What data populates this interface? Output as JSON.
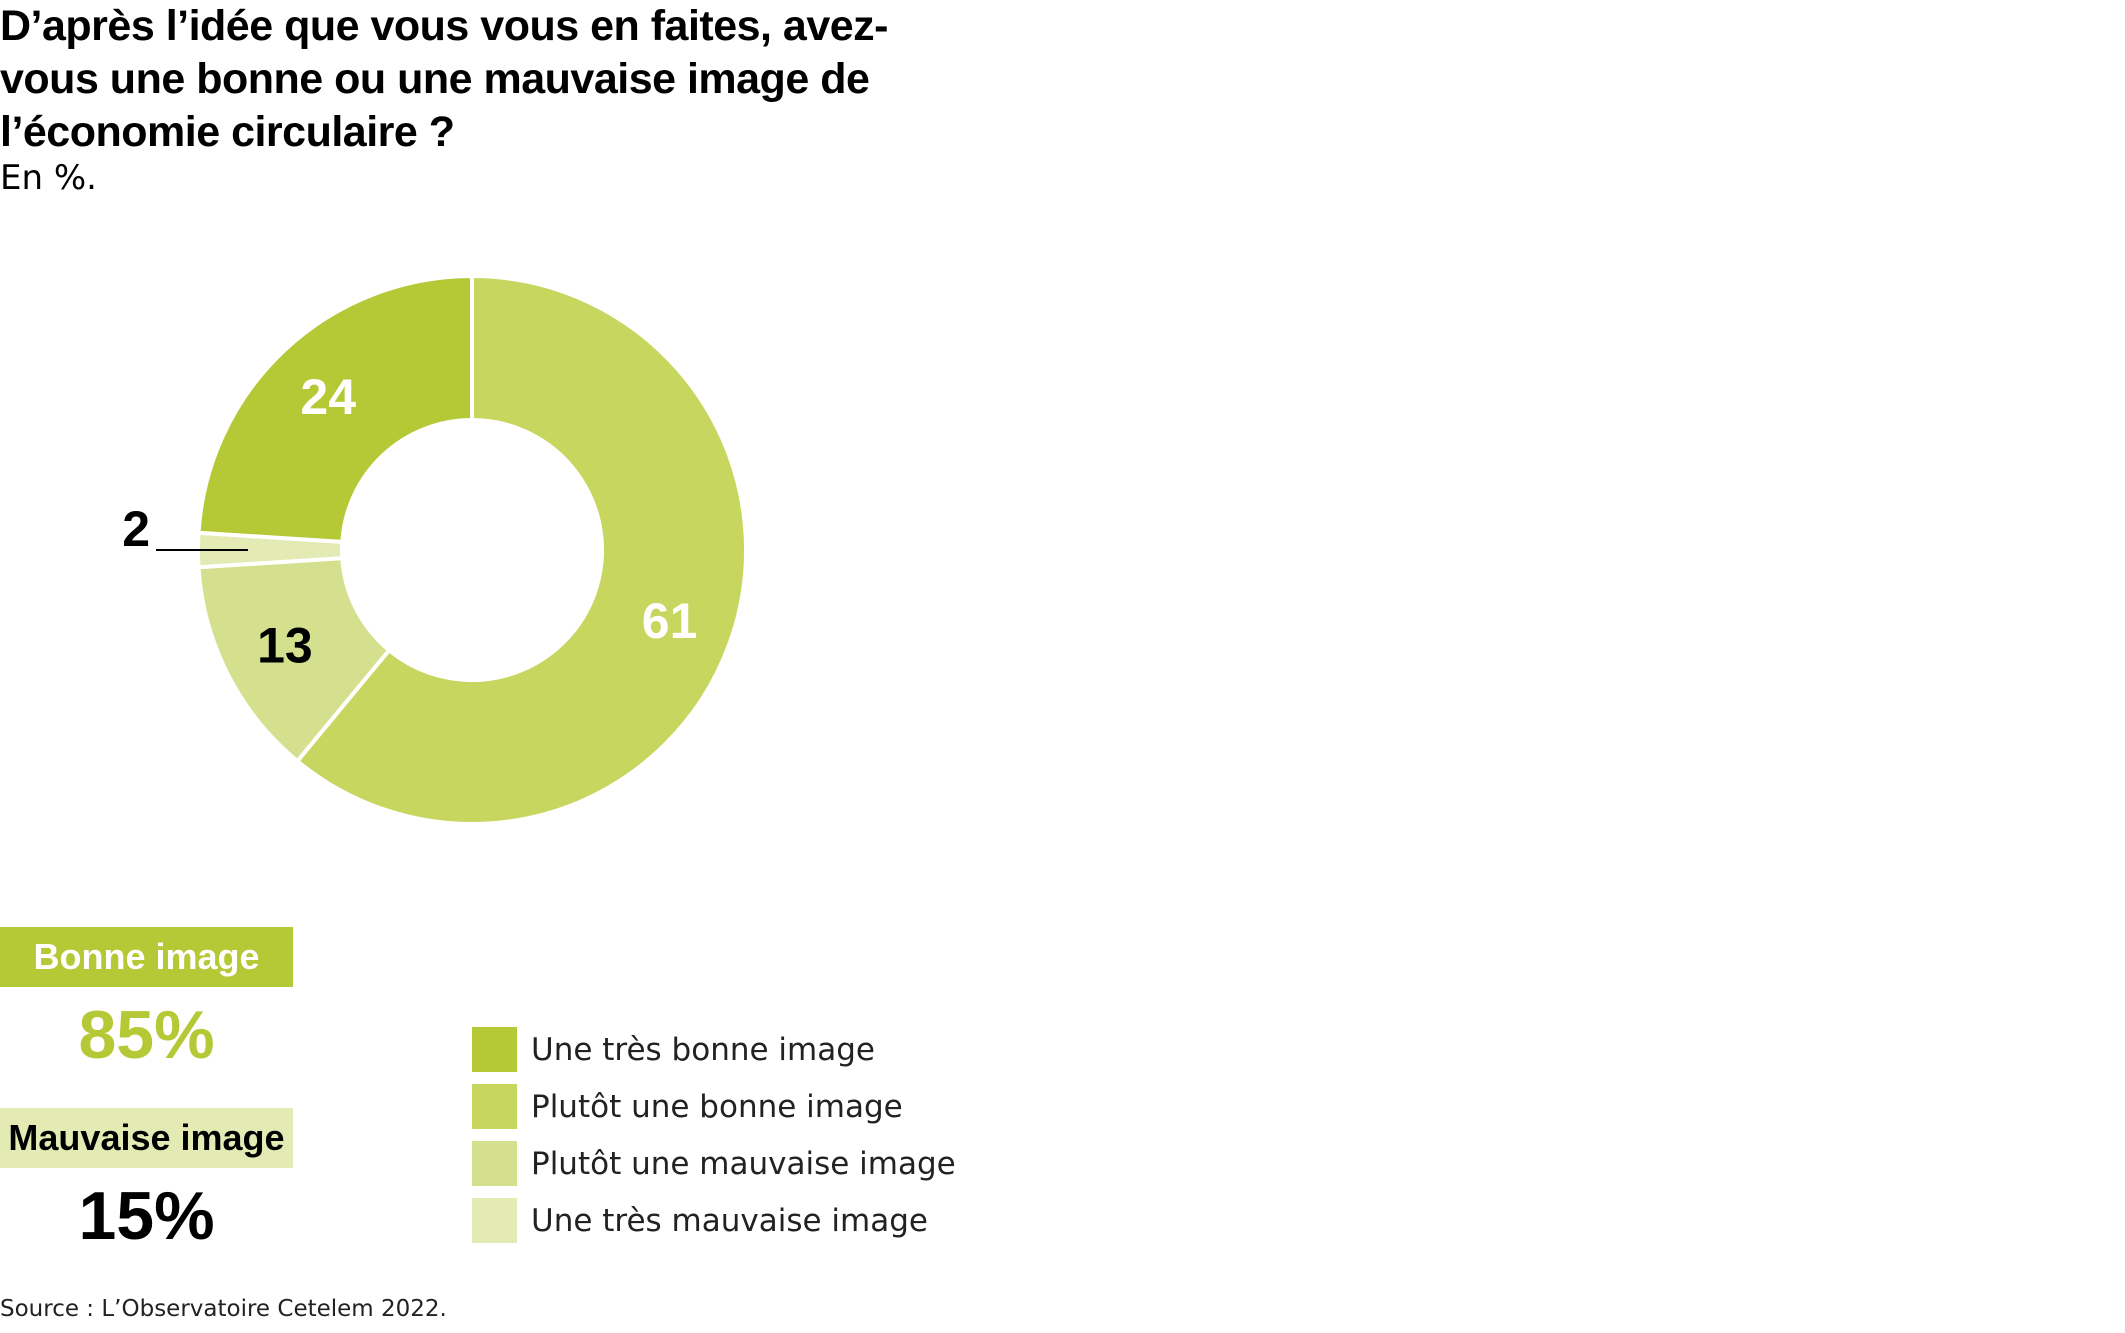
{
  "title": "D’après l’idée que vous vous en faites, avez-vous une bonne ou une mauvaise image de l’économie circulaire ?",
  "subtitle": "En %.",
  "source": "Source : L’Observatoire Cetelem 2022.",
  "summary": {
    "good": {
      "label": "Bonne image",
      "value": "85%",
      "box_color": "#b4c935",
      "value_color": "#b4c935"
    },
    "bad": {
      "label": "Mauvaise image",
      "value": "15%",
      "box_color": "#e3eab4",
      "value_color": "#000000"
    }
  },
  "chart_data": {
    "type": "pie",
    "title": "D’après l’idée que vous vous en faites, avez-vous une bonne ou une mauvaise image de l’économie circulaire ?",
    "unit": "%",
    "donut": true,
    "start": "top",
    "direction": "clockwise",
    "legend_position": "bottom",
    "slices": [
      {
        "label": "Plutôt une bonne image",
        "value": 61,
        "display": "61",
        "color": "#c7d65e",
        "label_color": "#ffffff"
      },
      {
        "label": "Plutôt une mauvaise image",
        "value": 13,
        "display": "13",
        "color": "#d5e08e",
        "label_color": "#000000"
      },
      {
        "label": "Une très mauvaise image",
        "value": 2,
        "display": "2",
        "color": "#e3eab4",
        "label_color": "#000000",
        "label_outside": true
      },
      {
        "label": "Une très bonne image",
        "value": 24,
        "display": "24",
        "color": "#b4c935",
        "label_color": "#ffffff"
      }
    ],
    "legend": [
      {
        "label": "Une très bonne image",
        "color": "#b4c935"
      },
      {
        "label": "Plutôt une bonne image",
        "color": "#c7d65e"
      },
      {
        "label": "Plutôt une mauvaise image",
        "color": "#d5e08e"
      },
      {
        "label": "Une très mauvaise image",
        "color": "#e3eab4"
      }
    ]
  }
}
